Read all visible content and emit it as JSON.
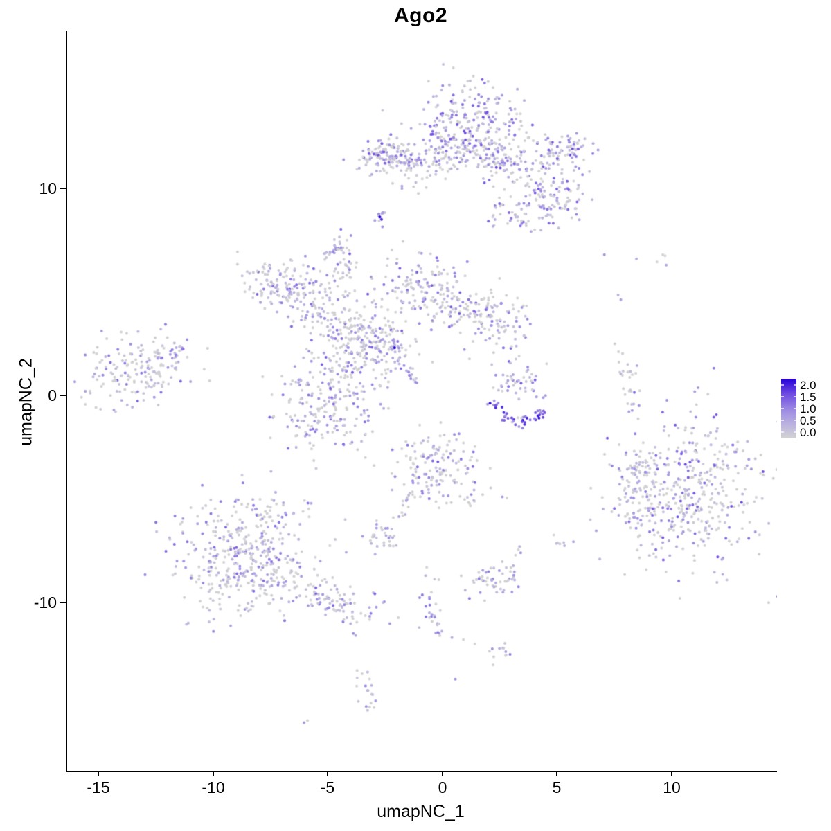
{
  "title": "Ago2",
  "axes": {
    "x_label": "umapNC_1",
    "y_label": "umapNC_2",
    "x_ticks": [
      "-15",
      "-10",
      "-5",
      "0",
      "5",
      "10"
    ],
    "y_ticks": [
      "10",
      "0",
      "-10"
    ],
    "axis_color": "#000000"
  },
  "legend": {
    "labels": [
      "2.0",
      "1.5",
      "1.0",
      "0.5",
      "0.0"
    ]
  },
  "chart_data": {
    "type": "scatter",
    "title": "Ago2",
    "xlabel": "umapNC_1",
    "ylabel": "umapNC_2",
    "xlim": [
      -16.4,
      14.5
    ],
    "ylim": [
      -18.1,
      17.6
    ],
    "x_tick_values": [
      -15,
      -10,
      -5,
      0,
      5,
      10
    ],
    "y_tick_values": [
      10,
      0,
      -10
    ],
    "grid": false,
    "legend_position": "right",
    "point_radius_px": 2.0,
    "color_scale": {
      "domain": [
        0,
        2
      ],
      "low": "#D3D3D3",
      "high": "#2600D8",
      "stops": [
        {
          "t": 0.0,
          "color": "#D3D3D3"
        },
        {
          "t": 0.25,
          "color": "#BAB1E0"
        },
        {
          "t": 0.5,
          "color": "#9A86E3"
        },
        {
          "t": 0.75,
          "color": "#6E49E0"
        },
        {
          "t": 1.0,
          "color": "#2600D8"
        }
      ]
    },
    "clusters": [
      {
        "id": "top-main",
        "shape": "blob",
        "cx": 1.1,
        "cy": 13.2,
        "sx": 1.15,
        "sy": 1.0,
        "rot": 0,
        "n": 230,
        "p0": 0.38,
        "vmax": 1.5
      },
      {
        "id": "top-lower",
        "shape": "blob",
        "cx": 1.4,
        "cy": 11.7,
        "sx": 1.1,
        "sy": 0.55,
        "rot": -5,
        "n": 120,
        "p0": 0.38,
        "vmax": 1.5
      },
      {
        "id": "top-right-knob",
        "shape": "blob",
        "cx": 5.35,
        "cy": 11.8,
        "sx": 0.6,
        "sy": 0.45,
        "rot": -15,
        "n": 75,
        "p0": 0.2,
        "vmax": 1.6
      },
      {
        "id": "top-right-arm",
        "shape": "blob",
        "cx": 3.6,
        "cy": 10.9,
        "sx": 1.2,
        "sy": 0.5,
        "rot": -25,
        "n": 90,
        "p0": 0.35,
        "vmax": 1.5
      },
      {
        "id": "top-right-lobe",
        "shape": "blob",
        "cx": 4.7,
        "cy": 9.4,
        "sx": 0.85,
        "sy": 0.55,
        "rot": 10,
        "n": 75,
        "p0": 0.35,
        "vmax": 1.4
      },
      {
        "id": "top-lower-tail",
        "shape": "blob",
        "cx": 3.1,
        "cy": 8.9,
        "sx": 0.7,
        "sy": 0.45,
        "rot": -15,
        "n": 45,
        "p0": 0.4,
        "vmax": 1.3
      },
      {
        "id": "top-left-arm",
        "shape": "blob",
        "cx": -2.0,
        "cy": 11.5,
        "sx": 0.8,
        "sy": 0.4,
        "rot": 0,
        "n": 100,
        "p0": 0.3,
        "vmax": 1.5
      },
      {
        "id": "top-left-arm-end",
        "shape": "blob",
        "cx": -3.0,
        "cy": 11.6,
        "sx": 0.4,
        "sy": 0.4,
        "rot": 0,
        "n": 45,
        "p0": 0.25,
        "vmax": 1.6
      },
      {
        "id": "top-bridge",
        "shape": "blob",
        "cx": -0.4,
        "cy": 11.3,
        "sx": 0.75,
        "sy": 0.3,
        "rot": 0,
        "n": 35,
        "p0": 0.5,
        "vmax": 1.2
      },
      {
        "id": "top-below-scatter",
        "shape": "blob",
        "cx": -1.6,
        "cy": 10.6,
        "sx": 0.9,
        "sy": 0.4,
        "rot": 0,
        "n": 22,
        "p0": 0.55,
        "vmax": 1.0
      },
      {
        "id": "dark-dot-cluster",
        "shape": "blob",
        "cx": -2.8,
        "cy": 8.6,
        "sx": 0.22,
        "sy": 0.22,
        "rot": 0,
        "n": 12,
        "p0": 0.25,
        "vmax": 1.1
      },
      {
        "id": "small-purple-blob",
        "shape": "blob",
        "cx": -4.6,
        "cy": 7.2,
        "sx": 0.3,
        "sy": 0.28,
        "rot": 0,
        "n": 16,
        "p0": 0.2,
        "vmax": 1.1
      },
      {
        "id": "blob-trail",
        "shape": "line",
        "x1": -4.35,
        "y1": 6.6,
        "x2": -4.15,
        "y2": 6.1,
        "jitter": 0.08,
        "n": 4,
        "p0": 0.4,
        "vmax": 0.9
      },
      {
        "id": "star-core",
        "shape": "blob",
        "cx": -3.2,
        "cy": 2.7,
        "sx": 1.05,
        "sy": 0.85,
        "rot": -20,
        "n": 210,
        "p0": 0.4,
        "vmax": 1.4
      },
      {
        "id": "star-ul-arm",
        "shape": "blob",
        "cx": -7.1,
        "cy": 5.3,
        "sx": 0.95,
        "sy": 0.6,
        "rot": -20,
        "n": 120,
        "p0": 0.4,
        "vmax": 1.4
      },
      {
        "id": "star-ul-mid",
        "shape": "blob",
        "cx": -5.6,
        "cy": 4.3,
        "sx": 0.95,
        "sy": 0.55,
        "rot": -35,
        "n": 95,
        "p0": 0.42,
        "vmax": 1.3
      },
      {
        "id": "star-top-arm",
        "shape": "blob",
        "cx": -4.55,
        "cy": 6.0,
        "sx": 0.5,
        "sy": 0.75,
        "rot": 0,
        "n": 50,
        "p0": 0.45,
        "vmax": 1.3
      },
      {
        "id": "star-ur-arm",
        "shape": "blob",
        "cx": -1.1,
        "cy": 5.3,
        "sx": 0.95,
        "sy": 0.8,
        "rot": -10,
        "n": 130,
        "p0": 0.42,
        "vmax": 1.4
      },
      {
        "id": "star-r-arm",
        "shape": "blob",
        "cx": 1.3,
        "cy": 4.1,
        "sx": 1.05,
        "sy": 0.6,
        "rot": -18,
        "n": 100,
        "p0": 0.42,
        "vmax": 1.4
      },
      {
        "id": "star-r-end",
        "shape": "blob",
        "cx": 2.55,
        "cy": 3.3,
        "sx": 0.6,
        "sy": 0.75,
        "rot": 0,
        "n": 60,
        "p0": 0.4,
        "vmax": 1.4
      },
      {
        "id": "star-ll-lobe",
        "shape": "blob",
        "cx": -5.1,
        "cy": -0.6,
        "sx": 1.15,
        "sy": 1.05,
        "rot": 10,
        "n": 190,
        "p0": 0.42,
        "vmax": 1.3
      },
      {
        "id": "star-bridge",
        "shape": "blob",
        "cx": -4.1,
        "cy": 1.2,
        "sx": 0.8,
        "sy": 0.8,
        "rot": 30,
        "n": 60,
        "p0": 0.45,
        "vmax": 1.2
      },
      {
        "id": "star-tail",
        "shape": "line",
        "x1": -2.4,
        "y1": 2.5,
        "x2": -1.15,
        "y2": 0.55,
        "jitter": 0.15,
        "n": 32,
        "p0": 0.12,
        "vmax": 1.2
      },
      {
        "id": "left-cluster",
        "shape": "blob",
        "cx": -13.2,
        "cy": 1.2,
        "sx": 1.35,
        "sy": 0.8,
        "rot": 12,
        "n": 185,
        "p0": 0.42,
        "vmax": 1.3
      },
      {
        "id": "left-trail",
        "shape": "line",
        "x1": -11.9,
        "y1": 2.1,
        "x2": -11.2,
        "y2": 2.85,
        "jitter": 0.12,
        "n": 8,
        "p0": 0.4,
        "vmax": 1.2
      },
      {
        "id": "rc-upper",
        "shape": "blob",
        "cx": 3.3,
        "cy": 0.6,
        "sx": 0.7,
        "sy": 0.55,
        "rot": 0,
        "n": 48,
        "p0": 0.3,
        "vmax": 1.4
      },
      {
        "id": "rc-arc-left",
        "shape": "line",
        "x1": 2.05,
        "y1": -0.35,
        "x2": 3.2,
        "y2": -1.35,
        "jitter": 0.14,
        "n": 24,
        "p0": 0.06,
        "vmin": 0.7,
        "vmax": 2.0
      },
      {
        "id": "rc-arc-right",
        "shape": "line",
        "x1": 3.2,
        "y1": -1.35,
        "x2": 4.45,
        "y2": -0.8,
        "jitter": 0.14,
        "n": 22,
        "p0": 0.06,
        "vmin": 0.9,
        "vmax": 2.0
      },
      {
        "id": "right-sliver",
        "shape": "blob",
        "cx": 8.15,
        "cy": 0.3,
        "sx": 0.22,
        "sy": 0.9,
        "rot": 8,
        "n": 30,
        "p0": 0.72,
        "vmax": 1.0
      },
      {
        "id": "right-main",
        "shape": "blob",
        "cx": 10.6,
        "cy": -4.6,
        "sx": 1.65,
        "sy": 1.75,
        "rot": 0,
        "n": 430,
        "p0": 0.45,
        "vmax": 1.5
      },
      {
        "id": "right-left-lobe",
        "shape": "blob",
        "cx": 8.45,
        "cy": -3.7,
        "sx": 0.5,
        "sy": 0.65,
        "rot": 0,
        "n": 40,
        "p0": 0.5,
        "vmax": 1.2
      },
      {
        "id": "right-ll-knob",
        "shape": "blob",
        "cx": 8.3,
        "cy": -5.5,
        "sx": 0.45,
        "sy": 0.55,
        "rot": 0,
        "n": 35,
        "p0": 0.45,
        "vmax": 1.3
      },
      {
        "id": "center-bottom",
        "shape": "blob",
        "cx": -0.3,
        "cy": -3.4,
        "sx": 0.95,
        "sy": 0.8,
        "rot": 0,
        "n": 140,
        "p0": 0.4,
        "vmax": 1.4
      },
      {
        "id": "cb-trail-left",
        "shape": "line",
        "x1": -1.3,
        "y1": -4.6,
        "x2": -2.3,
        "y2": -6.4,
        "jitter": 0.12,
        "n": 18,
        "p0": 0.35,
        "vmax": 1.1
      },
      {
        "id": "cb-trail-right",
        "shape": "line",
        "x1": 0.75,
        "y1": -4.7,
        "x2": 1.35,
        "y2": -5.4,
        "jitter": 0.1,
        "n": 8,
        "p0": 0.5,
        "vmax": 1.0
      },
      {
        "id": "small-mid-left",
        "shape": "blob",
        "cx": -2.75,
        "cy": -6.9,
        "sx": 0.42,
        "sy": 0.45,
        "rot": 0,
        "n": 30,
        "p0": 0.35,
        "vmax": 1.2
      },
      {
        "id": "bottomleft-main",
        "shape": "blob",
        "cx": -8.6,
        "cy": -7.9,
        "sx": 1.55,
        "sy": 1.45,
        "rot": 0,
        "n": 390,
        "p0": 0.42,
        "vmax": 1.3
      },
      {
        "id": "bottomleft-tail",
        "shape": "blob",
        "cx": -4.9,
        "cy": -9.9,
        "sx": 1.25,
        "sy": 0.5,
        "rot": -18,
        "n": 95,
        "p0": 0.42,
        "vmax": 1.3
      },
      {
        "id": "bottomleft-top",
        "shape": "blob",
        "cx": -7.6,
        "cy": -5.9,
        "sx": 0.95,
        "sy": 0.45,
        "rot": 10,
        "n": 40,
        "p0": 0.5,
        "vmax": 1.1
      },
      {
        "id": "small-bottom-mid",
        "shape": "blob",
        "cx": 2.1,
        "cy": -9.0,
        "sx": 0.68,
        "sy": 0.55,
        "rot": 0,
        "n": 55,
        "p0": 0.35,
        "vmax": 1.3
      },
      {
        "id": "pair-group",
        "shape": "blob",
        "cx": 5.0,
        "cy": -7.15,
        "sx": 0.28,
        "sy": 0.3,
        "rot": 0,
        "n": 6,
        "p0": 0.3,
        "vmax": 1.3
      },
      {
        "id": "bottom-trail",
        "shape": "line",
        "x1": -0.85,
        "y1": -9.1,
        "x2": -0.15,
        "y2": -11.6,
        "jitter": 0.15,
        "n": 26,
        "p0": 0.3,
        "vmax": 1.2
      },
      {
        "id": "small-bottom-right",
        "shape": "blob",
        "cx": 2.4,
        "cy": -12.4,
        "sx": 0.32,
        "sy": 0.3,
        "rot": 0,
        "n": 12,
        "p0": 0.4,
        "vmax": 1.2
      },
      {
        "id": "bottom-crescent",
        "shape": "line",
        "x1": -3.65,
        "y1": -13.3,
        "x2": -3.2,
        "y2": -15.0,
        "jitter": 0.14,
        "n": 20,
        "p0": 0.35,
        "vmax": 1.1
      }
    ],
    "extra_points": [
      [
        -2.8,
        8.62,
        2.0
      ],
      [
        -2.72,
        8.5,
        1.7
      ],
      [
        -2.15,
        2.3,
        2.0
      ],
      [
        7.0,
        6.8,
        0.8
      ],
      [
        8.4,
        6.6,
        0.6
      ],
      [
        9.3,
        6.45,
        0.0
      ],
      [
        9.55,
        6.8,
        0.0
      ],
      [
        9.65,
        6.75,
        0.0
      ],
      [
        9.7,
        6.3,
        0.7
      ],
      [
        7.6,
        4.85,
        0.5
      ],
      [
        7.72,
        4.62,
        0.7
      ],
      [
        2.55,
        -4.9,
        0.8
      ],
      [
        2.75,
        -4.95,
        0.0
      ],
      [
        3.25,
        -7.45,
        0.0
      ],
      [
        3.35,
        -7.6,
        0.9
      ],
      [
        3.3,
        -7.3,
        0.5
      ],
      [
        -0.75,
        -8.3,
        0.0
      ],
      [
        -0.8,
        -8.7,
        0.4
      ],
      [
        0.35,
        -11.7,
        0.6
      ],
      [
        0.85,
        -11.8,
        0.0
      ],
      [
        1.35,
        -12.0,
        0.0
      ],
      [
        -6.1,
        -15.8,
        0.8
      ],
      [
        -5.95,
        -15.7,
        0.0
      ],
      [
        0.5,
        -13.7,
        0.9
      ],
      [
        -3.95,
        -11.5,
        0.9
      ],
      [
        -3.85,
        -11.6,
        0.6
      ]
    ]
  }
}
